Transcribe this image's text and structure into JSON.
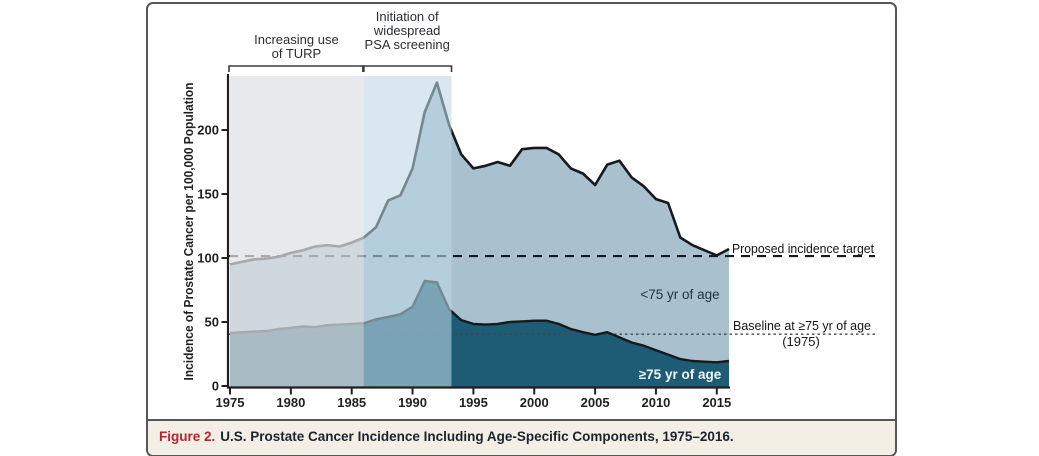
{
  "figure": {
    "caption": {
      "label": "Figure 2.",
      "text": "U.S. Prostate Cancer Incidence Including Age-Specific Components, 1975–2016.",
      "label_color": "#b42531",
      "text_color": "#1a2430",
      "background": "#f3efe4"
    },
    "border_color": "#56575a"
  },
  "chart_data": {
    "type": "area",
    "title": "",
    "xlabel": "",
    "ylabel": "Incidence of Prostate Cancer per 100,000 Population",
    "xlim": [
      1975,
      2016
    ],
    "ylim": [
      0,
      242
    ],
    "x_ticks": [
      1975,
      1980,
      1985,
      1990,
      1995,
      2000,
      2005,
      2010,
      2015
    ],
    "y_ticks": [
      0,
      50,
      100,
      150,
      200
    ],
    "grid": false,
    "years": [
      1975,
      1976,
      1977,
      1978,
      1979,
      1980,
      1981,
      1982,
      1983,
      1984,
      1985,
      1986,
      1987,
      1988,
      1989,
      1990,
      1991,
      1992,
      1993,
      1994,
      1995,
      1996,
      1997,
      1998,
      1999,
      2000,
      2001,
      2002,
      2003,
      2004,
      2005,
      2006,
      2007,
      2008,
      2009,
      2010,
      2011,
      2012,
      2013,
      2014,
      2015,
      2016
    ],
    "series": [
      {
        "name": "overall-incidence",
        "band_label": "<75 yr of age",
        "line_color": "#17191c",
        "fill_color": "#a9c1cf",
        "values": [
          95,
          97,
          99,
          99.5,
          101,
          104,
          106,
          109,
          110,
          109,
          112,
          116,
          124,
          145,
          149,
          170,
          214,
          237,
          204,
          181,
          170,
          172,
          175,
          172,
          185,
          186,
          186,
          181,
          170,
          166,
          157,
          173,
          176,
          163,
          156,
          146,
          143,
          116,
          110,
          106,
          102,
          107
        ]
      },
      {
        "name": "age-75-and-over",
        "band_label": "≥75 yr of age",
        "line_color": "#17191c",
        "fill_color": "#1d5c74",
        "values": [
          41.5,
          42,
          42.5,
          43,
          44.5,
          45.5,
          46.5,
          46,
          47.5,
          48,
          48.5,
          49,
          52,
          54,
          56,
          62,
          82,
          81,
          60,
          51.5,
          48.5,
          48,
          48.5,
          50,
          50.5,
          51,
          51,
          48.5,
          44.5,
          42,
          40,
          42,
          38,
          34,
          31.5,
          28,
          24.5,
          21,
          19.5,
          19,
          18.5,
          19.5
        ]
      }
    ],
    "reference_lines": [
      {
        "name": "proposed-incidence-target",
        "label": "Proposed incidence target",
        "value": 101.5,
        "style": "dashed",
        "color": "#17191c"
      },
      {
        "name": "baseline-age-75-1975",
        "label": "Baseline at ≥75 yr of age",
        "sublabel": "(1975)",
        "value": 40.5,
        "style": "dotted",
        "color": "#41464b"
      }
    ],
    "regions": [
      {
        "name": "turp",
        "label_lines": [
          "Increasing use",
          "of TURP"
        ],
        "x_start": 1975,
        "x_end": 1986,
        "overlay_color": "rgba(223,225,228,0.72)"
      },
      {
        "name": "psa",
        "label_lines": [
          "Initiation of",
          "widespread",
          "PSA screening"
        ],
        "x_start": 1986,
        "x_end": 1993.2,
        "overlay_color": "rgba(189,216,229,0.58)"
      }
    ]
  }
}
